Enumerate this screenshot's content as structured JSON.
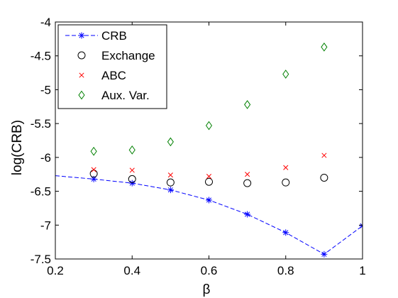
{
  "chart_data": {
    "type": "line",
    "xlabel": "β",
    "ylabel": "log(CRB)",
    "xlim": [
      0.2,
      1.0
    ],
    "ylim": [
      -7.5,
      -4.0
    ],
    "xticks": [
      0.2,
      0.4,
      0.6,
      0.8,
      1.0
    ],
    "xtick_labels": [
      "0.2",
      "0.4",
      "0.6",
      "0.8",
      "1"
    ],
    "yticks": [
      -4.0,
      -4.5,
      -5.0,
      -5.5,
      -6.0,
      -6.5,
      -7.0,
      -7.5
    ],
    "ytick_labels": [
      "-4",
      "-4.5",
      "-5",
      "-5.5",
      "-6",
      "-6.5",
      "-7",
      "-7.5"
    ],
    "grid": false,
    "legend_position": "top-left",
    "series": [
      {
        "name": "CRB",
        "style": "dashed-line-with-star-markers",
        "color": "#0000ff",
        "line_x": [
          0.2,
          0.3,
          0.4,
          0.5,
          0.6,
          0.7,
          0.8,
          0.9,
          1.0
        ],
        "line_y": [
          -6.27,
          -6.32,
          -6.38,
          -6.48,
          -6.63,
          -6.84,
          -7.11,
          -7.43,
          -7.01
        ],
        "x": [
          0.3,
          0.4,
          0.5,
          0.6,
          0.7,
          0.8,
          0.9,
          1.0
        ],
        "y": [
          -6.32,
          -6.38,
          -6.48,
          -6.63,
          -6.84,
          -7.11,
          -7.43,
          -7.01
        ]
      },
      {
        "name": "Exchange",
        "style": "circle-markers",
        "color": "#000000",
        "x": [
          0.3,
          0.4,
          0.5,
          0.6,
          0.7,
          0.8,
          0.9
        ],
        "y": [
          -6.24,
          -6.32,
          -6.37,
          -6.36,
          -6.38,
          -6.37,
          -6.3
        ]
      },
      {
        "name": "ABC",
        "style": "x-markers",
        "color": "#ff0000",
        "x": [
          0.3,
          0.4,
          0.5,
          0.6,
          0.7,
          0.8,
          0.9
        ],
        "y": [
          -6.18,
          -6.19,
          -6.26,
          -6.28,
          -6.25,
          -6.15,
          -5.97
        ]
      },
      {
        "name": "Aux. Var.",
        "style": "diamond-markers",
        "color": "#008000",
        "x": [
          0.3,
          0.4,
          0.5,
          0.6,
          0.7,
          0.8,
          0.9
        ],
        "y": [
          -5.91,
          -5.89,
          -5.77,
          -5.53,
          -5.22,
          -4.77,
          -4.37
        ]
      }
    ]
  }
}
